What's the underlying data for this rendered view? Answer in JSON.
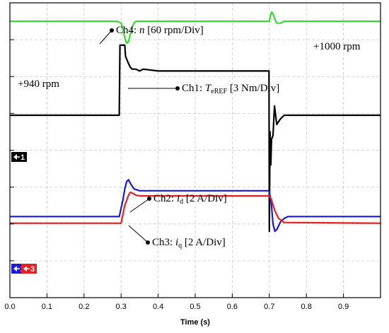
{
  "chart_data": {
    "type": "line",
    "xlabel": "Time (s)",
    "xlim": [
      0.0,
      1.0
    ],
    "x_ticks": [
      "0.0",
      "0.1",
      "0.2",
      "0.3",
      "0.4",
      "0.5",
      "0.6",
      "0.7",
      "0.8",
      "0.9"
    ],
    "grid": true,
    "grid_divisions": {
      "x": 10,
      "y": 8
    },
    "series": [
      {
        "name": "Ch4",
        "color": "#33dd33",
        "points": [
          [
            0.0,
            7.5
          ],
          [
            0.29,
            7.5
          ],
          [
            0.3,
            7.45
          ],
          [
            0.305,
            7.3
          ],
          [
            0.31,
            7.05
          ],
          [
            0.315,
            6.9
          ],
          [
            0.32,
            6.95
          ],
          [
            0.325,
            7.15
          ],
          [
            0.33,
            7.35
          ],
          [
            0.335,
            7.45
          ],
          [
            0.34,
            7.5
          ],
          [
            0.6,
            7.5
          ],
          [
            0.7,
            7.5
          ],
          [
            0.702,
            7.6
          ],
          [
            0.706,
            7.75
          ],
          [
            0.71,
            7.7
          ],
          [
            0.715,
            7.55
          ],
          [
            0.72,
            7.45
          ],
          [
            0.73,
            7.45
          ],
          [
            0.74,
            7.5
          ],
          [
            1.0,
            7.5
          ]
        ]
      },
      {
        "name": "Ch1",
        "color": "#000000",
        "points": [
          [
            0.0,
            4.95
          ],
          [
            0.295,
            4.95
          ],
          [
            0.297,
            6.85
          ],
          [
            0.31,
            6.85
          ],
          [
            0.312,
            6.55
          ],
          [
            0.32,
            6.35
          ],
          [
            0.325,
            6.25
          ],
          [
            0.33,
            6.2
          ],
          [
            0.34,
            6.2
          ],
          [
            0.35,
            6.15
          ],
          [
            0.36,
            6.2
          ],
          [
            0.4,
            6.15
          ],
          [
            0.5,
            6.15
          ],
          [
            0.6,
            6.15
          ],
          [
            0.699,
            6.15
          ],
          [
            0.7,
            1.8
          ],
          [
            0.702,
            4.5
          ],
          [
            0.704,
            3.6
          ],
          [
            0.706,
            4.3
          ],
          [
            0.71,
            4.4
          ],
          [
            0.714,
            5.2
          ],
          [
            0.72,
            4.7
          ],
          [
            0.73,
            4.85
          ],
          [
            0.74,
            4.95
          ],
          [
            1.0,
            4.95
          ]
        ]
      },
      {
        "name": "Ch2",
        "color": "#1a1ad4",
        "points": [
          [
            0.0,
            2.2
          ],
          [
            0.295,
            2.2
          ],
          [
            0.305,
            2.65
          ],
          [
            0.31,
            2.95
          ],
          [
            0.315,
            3.15
          ],
          [
            0.32,
            3.2
          ],
          [
            0.325,
            3.1
          ],
          [
            0.335,
            2.95
          ],
          [
            0.35,
            2.9
          ],
          [
            0.36,
            2.9
          ],
          [
            0.699,
            2.9
          ],
          [
            0.705,
            2.6
          ],
          [
            0.71,
            2.0
          ],
          [
            0.715,
            1.8
          ],
          [
            0.72,
            1.85
          ],
          [
            0.73,
            2.05
          ],
          [
            0.74,
            2.15
          ],
          [
            0.75,
            2.2
          ],
          [
            1.0,
            2.2
          ]
        ]
      },
      {
        "name": "Ch3",
        "color": "#e62020",
        "points": [
          [
            0.0,
            2.02
          ],
          [
            0.3,
            2.02
          ],
          [
            0.31,
            2.5
          ],
          [
            0.32,
            2.78
          ],
          [
            0.325,
            2.86
          ],
          [
            0.33,
            2.84
          ],
          [
            0.34,
            2.78
          ],
          [
            0.35,
            2.76
          ],
          [
            0.699,
            2.76
          ],
          [
            0.705,
            2.68
          ],
          [
            0.715,
            2.35
          ],
          [
            0.725,
            2.15
          ],
          [
            0.74,
            2.04
          ],
          [
            1.0,
            2.02
          ]
        ]
      }
    ],
    "annotations": [
      {
        "prefix": "Ch4: ",
        "var": "n",
        "sub": "",
        "suffix": " [60 rpm/Div]",
        "color": "#000000"
      },
      {
        "prefix": "Ch1: ",
        "var": "T",
        "sub": "eREF",
        "suffix": " [3 Nm/Div]",
        "color": "#000000"
      },
      {
        "prefix": "Ch2: ",
        "var": "i",
        "sub": "d",
        "suffix": " [2 A/Div]",
        "color": "#000000"
      },
      {
        "prefix": "Ch3: ",
        "var": "i",
        "sub": "q",
        "suffix": " [2 A/Div]",
        "color": "#000000"
      }
    ],
    "plain_labels": [
      "+1000 rpm",
      "+940 rpm"
    ],
    "channel_markers": [
      {
        "text": "1",
        "color": "#000000"
      },
      {
        "text": "2",
        "color": "#1a1ad4"
      },
      {
        "text": "3",
        "color": "#e62020"
      }
    ]
  }
}
